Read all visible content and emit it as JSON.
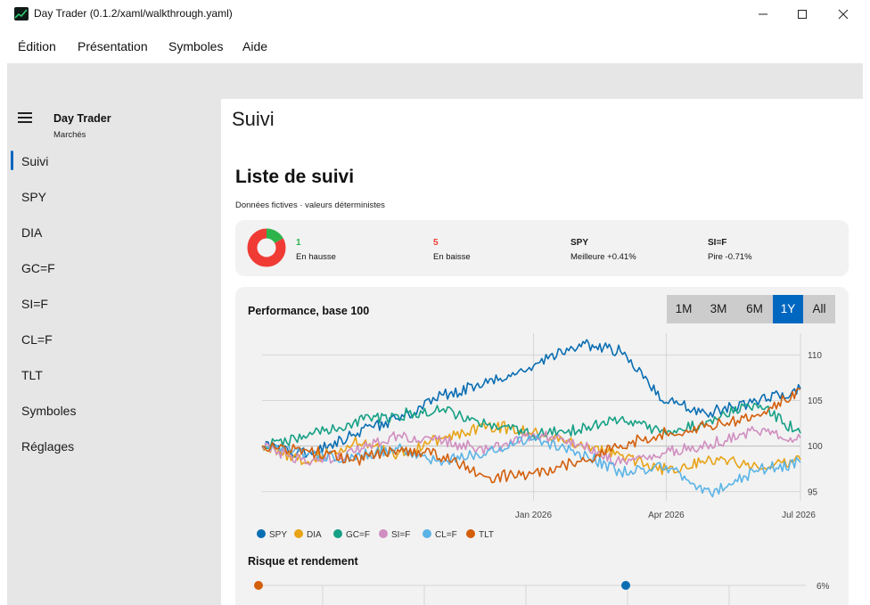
{
  "window": {
    "title": "Day Trader (0.1.2/xaml/walkthrough.yaml)",
    "app_icon": "chart-line-icon",
    "controls": [
      "minimize-icon",
      "maximize-icon",
      "close-icon"
    ]
  },
  "menu": {
    "items": [
      {
        "label": "Édition"
      },
      {
        "label": "Présentation"
      },
      {
        "label": "Symboles"
      },
      {
        "label": "Aide"
      }
    ]
  },
  "sidebar": {
    "brand_title": "Day Trader",
    "brand_subtitle": "Marchés",
    "menu_icon": "hamburger-icon",
    "items": [
      {
        "label": "Suivi",
        "selected": true
      },
      {
        "label": "SPY"
      },
      {
        "label": "DIA"
      },
      {
        "label": "GC=F"
      },
      {
        "label": "SI=F"
      },
      {
        "label": "CL=F"
      },
      {
        "label": "TLT"
      },
      {
        "label": "Symboles"
      },
      {
        "label": "Réglages"
      }
    ]
  },
  "page": {
    "title": "Suivi",
    "section_title": "Liste de suivi",
    "section_subtitle": "Données fictives · valeurs déterministes"
  },
  "summary": {
    "up_count": "1",
    "up_label": "En hausse",
    "down_count": "5",
    "down_label": "En baisse",
    "best_symbol": "SPY",
    "best_label": "Meilleure +0.41%",
    "worst_symbol": "SI=F",
    "worst_label": "Pire -0.71%",
    "donut": {
      "up": 1,
      "down": 5
    },
    "colors": {
      "up": "#2db34a",
      "down": "#f03b35",
      "accent": "#0067c0"
    }
  },
  "performance": {
    "title": "Performance, base 100",
    "ranges": [
      "1M",
      "3M",
      "6M",
      "1Y",
      "All"
    ],
    "selected_range": "1Y",
    "risk_title": "Risque et rendement"
  },
  "chart_data": [
    {
      "type": "line",
      "title": "Performance, base 100",
      "xlabel": "",
      "ylabel": "",
      "x": [
        "2025-07-01",
        "2025-08-01",
        "2025-09-01",
        "2025-10-01",
        "2025-11-01",
        "2025-12-01",
        "2026-01-01",
        "2026-02-01",
        "2026-03-01",
        "2026-04-01",
        "2026-05-01",
        "2026-06-01",
        "2026-07-01"
      ],
      "x_tick_labels": [
        "Jan 2026",
        "Apr 2026",
        "Jul 2026"
      ],
      "x_tick_dates": [
        "2026-01-01",
        "2026-04-01",
        "2026-07-01"
      ],
      "y_ticks": [
        95,
        100,
        105,
        110
      ],
      "ylim": [
        94,
        111.8
      ],
      "y_axis_side": "right",
      "grid": true,
      "legend_position": "bottom-left",
      "series": [
        {
          "name": "SPY",
          "color": "#0a6eb3",
          "values": [
            100,
            99.1,
            101.3,
            103.0,
            105.6,
            106.9,
            108.8,
            111.2,
            110.4,
            104.8,
            103.7,
            104.9,
            106.3
          ]
        },
        {
          "name": "DIA",
          "color": "#e8a317",
          "values": [
            100,
            98.3,
            100.4,
            99.1,
            100.9,
            102.3,
            101.6,
            100.2,
            99.0,
            97.4,
            98.6,
            97.9,
            98.5
          ]
        },
        {
          "name": "GC=F",
          "color": "#16a085",
          "values": [
            100,
            101.1,
            102.6,
            103.4,
            104.1,
            102.3,
            101.2,
            101.8,
            103.0,
            101.3,
            102.9,
            104.6,
            101.4
          ]
        },
        {
          "name": "SI=F",
          "color": "#d08ec0",
          "values": [
            100,
            98.1,
            99.3,
            101.2,
            100.5,
            99.6,
            101.4,
            100.2,
            98.1,
            99.3,
            100.2,
            101.7,
            100.9
          ]
        },
        {
          "name": "CL=F",
          "color": "#5ab3e6",
          "values": [
            100,
            99.0,
            98.8,
            99.7,
            98.3,
            99.5,
            100.8,
            99.3,
            97.2,
            97.8,
            94.8,
            97.3,
            98.2
          ]
        },
        {
          "name": "TLT",
          "color": "#d35f0b",
          "values": [
            100,
            99.5,
            98.4,
            99.6,
            98.9,
            96.6,
            97.0,
            98.3,
            100.1,
            101.5,
            102.2,
            103.4,
            106.2
          ]
        }
      ]
    },
    {
      "type": "scatter",
      "title": "Risque et rendement",
      "y_tick_labels": [
        "6%"
      ],
      "note": "only the top row of this chart is visible; partially cut off",
      "series": [
        {
          "name": "TLT",
          "color": "#d35f0b",
          "values": [
            6.0
          ]
        },
        {
          "name": "SPY",
          "color": "#0a6eb3",
          "values": [
            6.0
          ]
        }
      ]
    }
  ]
}
